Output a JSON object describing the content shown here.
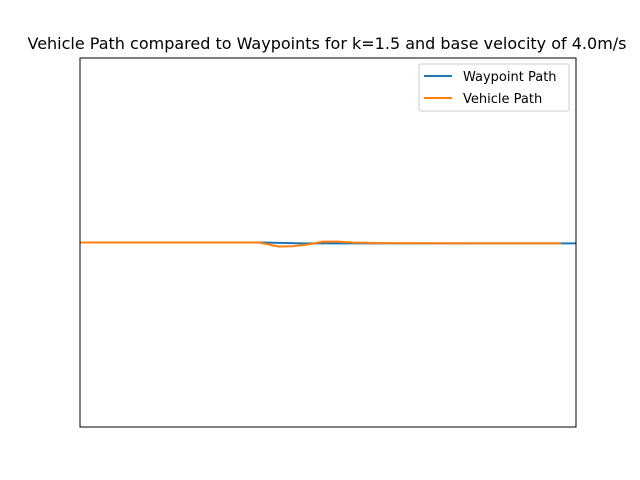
{
  "chart_data": {
    "type": "line",
    "title": "Vehicle Path compared to Waypoints for k=1.5 and base velocity of 4.0m/s",
    "xlabel": "",
    "ylabel": "",
    "xlim": [
      0,
      100
    ],
    "ylim": [
      -10,
      10
    ],
    "grid": false,
    "axes_ticks_visible": false,
    "legend_placement": "top-right",
    "series": [
      {
        "name": "Waypoint Path",
        "color": "#1f77b4",
        "x": [
          0,
          20,
          37,
          40,
          45,
          50,
          55,
          60,
          80,
          100
        ],
        "y": [
          0.0,
          0.0,
          0.0,
          -0.02,
          -0.05,
          -0.05,
          -0.05,
          -0.05,
          -0.05,
          -0.05
        ]
      },
      {
        "name": "Vehicle Path",
        "color": "#ff7f0e",
        "x": [
          0,
          20,
          36,
          38,
          40,
          43,
          46,
          49,
          52,
          55,
          60,
          80,
          97
        ],
        "y": [
          0.0,
          0.0,
          0.0,
          -0.1,
          -0.22,
          -0.2,
          -0.1,
          0.05,
          0.05,
          0.0,
          -0.03,
          -0.05,
          -0.05
        ]
      }
    ]
  }
}
